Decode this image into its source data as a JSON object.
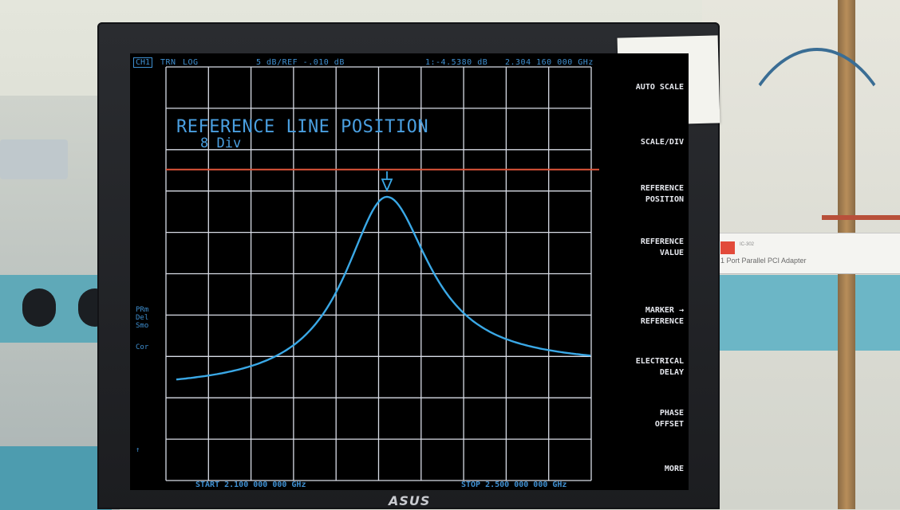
{
  "screen": {
    "status": {
      "channel": "CH1",
      "mode": "TRN",
      "format": "LOG",
      "scale": "5 dB/REF -.010 dB",
      "marker": "1:-4.5380 dB",
      "marker_freq": "2.304 160 000 GHz"
    },
    "overlay": {
      "title": "REFERENCE LINE POSITION",
      "value": "8 Div"
    },
    "side_annotations": [
      "PRm\nDel\nSmo",
      "Cor",
      "↑"
    ],
    "softkeys": [
      "AUTO SCALE",
      "SCALE/DIV",
      "REFERENCE\nPOSITION",
      "REFERENCE\nVALUE",
      "MARKER →\nREFERENCE",
      "ELECTRICAL\nDELAY",
      "PHASE\nOFFSET",
      "MORE"
    ],
    "start": "START 2.100 000 000 GHz",
    "stop": "STOP 2.500 000 000 GHz",
    "colors": {
      "trace": "#3aa8e6",
      "reference_line": "#e0553a",
      "grid": "#d8dce6",
      "annotation": "#3f8fd0"
    }
  },
  "adapter": {
    "model": "IC-302",
    "label": "1 Port Parallel PCI Adapter"
  },
  "monitor": {
    "brand": "ASUS"
  }
}
